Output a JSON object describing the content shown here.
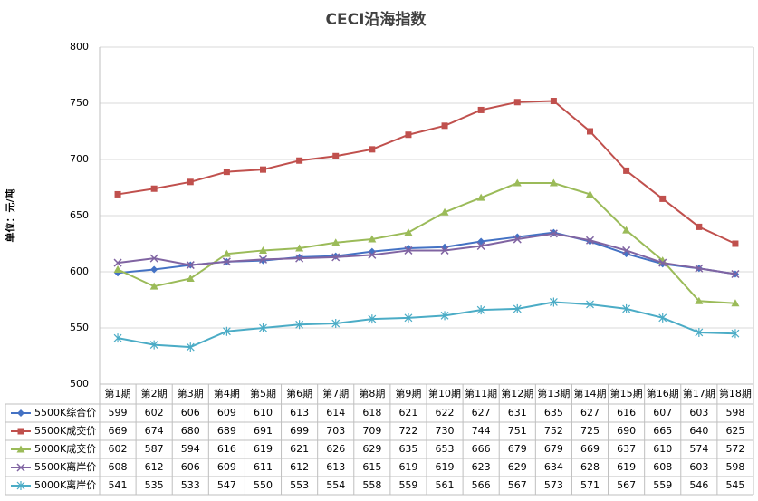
{
  "chart_data": {
    "type": "line",
    "title": "CECI沿海指数",
    "y_label": "单位：元/吨",
    "categories": [
      "第1期",
      "第2期",
      "第3期",
      "第4期",
      "第5期",
      "第6期",
      "第7期",
      "第8期",
      "第9期",
      "第10期",
      "第11期",
      "第12期",
      "第13期",
      "第14期",
      "第15期",
      "第16期",
      "第17期",
      "第18期"
    ],
    "ylim": [
      500,
      800
    ],
    "yticks": [
      500,
      550,
      600,
      650,
      700,
      750,
      800
    ],
    "grid": true,
    "data_table": true,
    "series": [
      {
        "name": "5500K综合价",
        "color": "#4472c4",
        "marker": "diamond",
        "values": [
          599,
          602,
          606,
          609,
          610,
          613,
          614,
          618,
          621,
          622,
          627,
          631,
          635,
          627,
          616,
          607,
          603,
          598
        ]
      },
      {
        "name": "5500K成交价",
        "color": "#c0504d",
        "marker": "square",
        "values": [
          669,
          674,
          680,
          689,
          691,
          699,
          703,
          709,
          722,
          730,
          744,
          751,
          752,
          725,
          690,
          665,
          640,
          625
        ]
      },
      {
        "name": "5000K成交价",
        "color": "#9bbb59",
        "marker": "triangle",
        "values": [
          602,
          587,
          594,
          616,
          619,
          621,
          626,
          629,
          635,
          653,
          666,
          679,
          679,
          669,
          637,
          610,
          574,
          572
        ]
      },
      {
        "name": "5500K离岸价",
        "color": "#8064a2",
        "marker": "x",
        "values": [
          608,
          612,
          606,
          609,
          611,
          612,
          613,
          615,
          619,
          619,
          623,
          629,
          634,
          628,
          619,
          608,
          603,
          598
        ]
      },
      {
        "name": "5000K离岸价",
        "color": "#4bacc6",
        "marker": "star",
        "values": [
          541,
          535,
          533,
          547,
          550,
          553,
          554,
          558,
          559,
          561,
          566,
          567,
          573,
          571,
          567,
          559,
          546,
          545
        ]
      }
    ]
  }
}
